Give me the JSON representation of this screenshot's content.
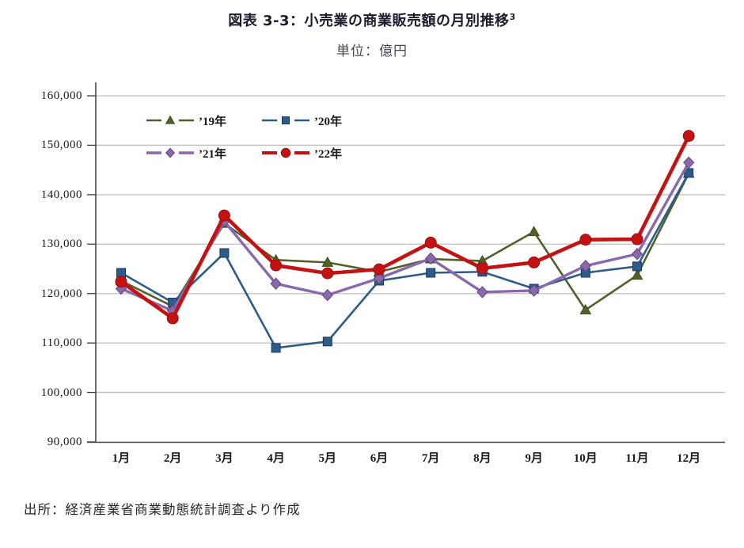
{
  "page": {
    "title_main": "図表 3-3：小売業の商業販売額の月別推移",
    "title_superscript": "3",
    "subtitle": "単位：億円",
    "source": "出所：経済産業省商業動態統計調査より作成"
  },
  "chart_data": {
    "type": "line",
    "title": "図表 3-3：小売業の商業販売額の月別推移3",
    "unit_label": "単位：億円",
    "source": "出所：経済産業省商業動態統計調査より作成",
    "categories": [
      "1月",
      "2月",
      "3月",
      "4月",
      "5月",
      "6月",
      "7月",
      "8月",
      "9月",
      "10月",
      "11月",
      "12月"
    ],
    "ylim": [
      90000,
      160000
    ],
    "y_step": 10000,
    "y_ticks": [
      90000,
      100000,
      110000,
      120000,
      130000,
      140000,
      150000,
      160000
    ],
    "grid": "horizontal",
    "grid_color": "#BFBFBF",
    "axis_color": "#3F3F3F",
    "legend_position": "top-left-inside",
    "series": [
      {
        "name": "’19年",
        "color": "#4F6228",
        "marker": "triangle",
        "marker_stroke": "#3A4A1D",
        "line_width": 2.6,
        "values": [
          122600,
          117400,
          134200,
          126800,
          126300,
          124400,
          127000,
          126600,
          132500,
          116700,
          123700,
          144300
        ]
      },
      {
        "name": "’20年",
        "color": "#2E5C8A",
        "marker": "square",
        "marker_stroke": "#17375E",
        "line_width": 2.6,
        "values": [
          124200,
          118200,
          128200,
          109000,
          110300,
          122600,
          124200,
          124400,
          121000,
          124200,
          125500,
          144400
        ]
      },
      {
        "name": "’21年",
        "color": "#8968AE",
        "marker": "diamond",
        "marker_stroke": "#5F4880",
        "line_width": 3.4,
        "values": [
          121000,
          116500,
          134600,
          122000,
          119700,
          123100,
          127100,
          120300,
          120600,
          125600,
          128000,
          146500
        ]
      },
      {
        "name": "’22年",
        "color": "#C41212",
        "marker": "circle",
        "marker_stroke": "#9C0E0E",
        "line_width": 4.6,
        "values": [
          122400,
          115000,
          135800,
          125700,
          124100,
          124900,
          130300,
          125100,
          126300,
          130900,
          131000,
          151900
        ]
      }
    ]
  }
}
